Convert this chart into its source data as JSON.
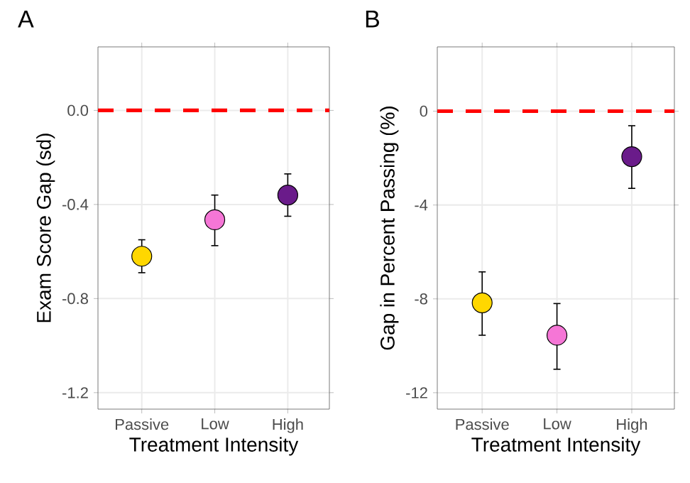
{
  "chart_data": [
    {
      "type": "scatter",
      "title": "A",
      "xlabel": "Treatment Intensity",
      "ylabel": "Exam Score Gap (sd)",
      "categories": [
        "Passive",
        "Low",
        "High"
      ],
      "values": [
        -0.62,
        -0.465,
        -0.36
      ],
      "colors": [
        "#ffd700",
        "#f576d6",
        "#6a1b8a"
      ],
      "errors": [
        [
          -0.69,
          -0.55
        ],
        [
          -0.575,
          -0.36
        ],
        [
          -0.45,
          -0.27
        ]
      ],
      "ylim": [
        -1.27,
        0.27
      ],
      "yticks": [
        {
          "value": 0,
          "label": "0.0"
        },
        -0.4,
        -0.8,
        -1.2
      ],
      "ref_lines": [
        {
          "axis": "y",
          "value": 0,
          "color": "#ff0000",
          "line_style": "dashed"
        }
      ],
      "grid": true
    },
    {
      "type": "scatter",
      "title": "B",
      "xlabel": "Treatment Intensity",
      "ylabel": "Gap in Percent Passing (%)",
      "categories": [
        "Passive",
        "Low",
        "High"
      ],
      "values": [
        -8.17,
        -9.55,
        -1.94
      ],
      "colors": [
        "#ffd700",
        "#f576d6",
        "#6a1b8a"
      ],
      "errors": [
        [
          -9.55,
          -6.85
        ],
        [
          -11.0,
          -8.2
        ],
        [
          -3.29,
          -0.62
        ]
      ],
      "ylim": [
        -12.7,
        2.74
      ],
      "yticks": [
        0,
        -4,
        -8,
        -12
      ],
      "ref_lines": [
        {
          "axis": "y",
          "value": 0,
          "color": "#ff0000",
          "line_style": "dashed"
        }
      ],
      "grid": true
    }
  ]
}
